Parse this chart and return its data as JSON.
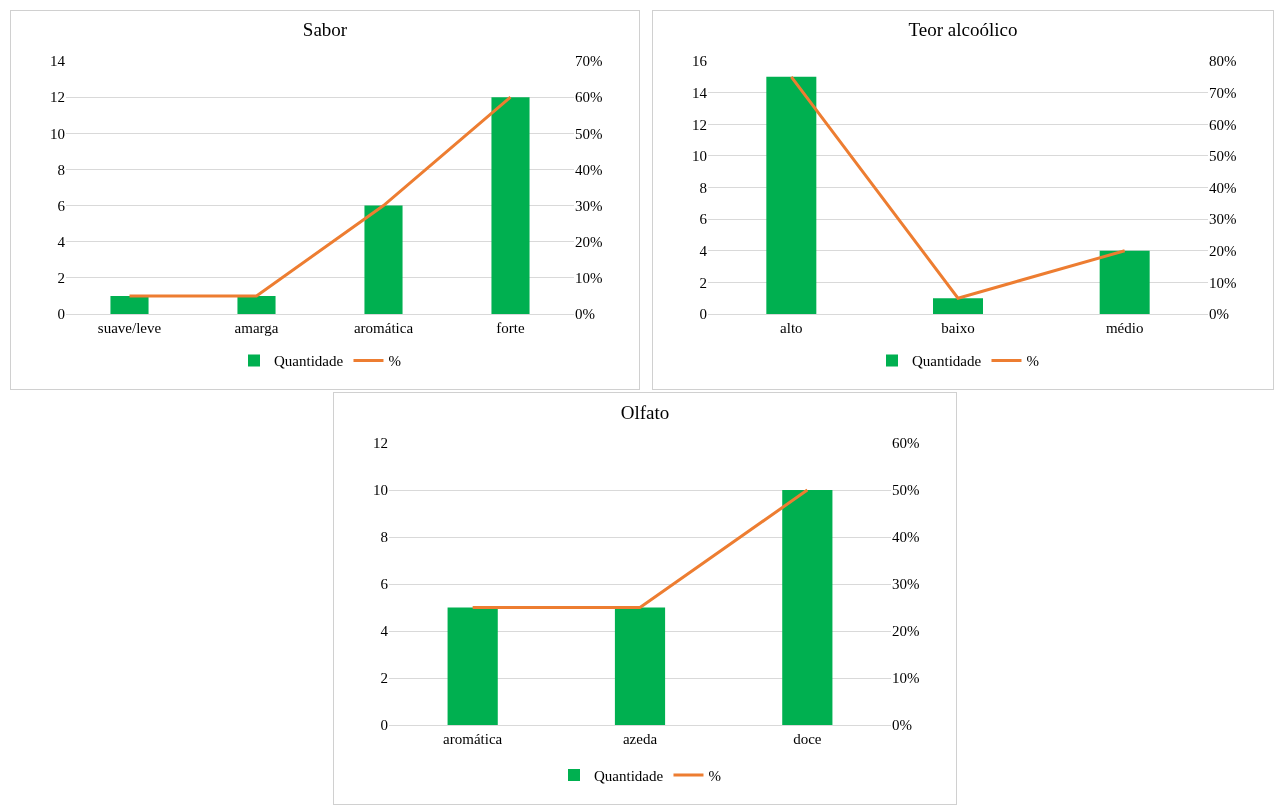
{
  "chart_data": [
    {
      "type": "bar",
      "title": "Sabor",
      "categories": [
        "suave/leve",
        "amarga",
        "aromática",
        "forte"
      ],
      "series": [
        {
          "name": "Quantidade",
          "color": "#00b050",
          "values": [
            1,
            1,
            6,
            12
          ]
        },
        {
          "name": "%",
          "type": "line",
          "axis": "y2",
          "color": "#ed7d31",
          "values": [
            5,
            5,
            30,
            60
          ]
        }
      ],
      "ylim": [
        0,
        14
      ],
      "yticks": [
        0,
        2,
        4,
        6,
        8,
        10,
        12,
        14
      ],
      "y2lim": [
        0,
        70
      ],
      "y2ticks": [
        {
          "value": 0,
          "label": "0%"
        },
        {
          "value": 10,
          "label": "10%"
        },
        {
          "value": 20,
          "label": "20%"
        },
        {
          "value": 30,
          "label": "30%"
        },
        {
          "value": 40,
          "label": "40%"
        },
        {
          "value": 50,
          "label": "50%"
        },
        {
          "value": 60,
          "label": "60%"
        },
        {
          "value": 70,
          "label": "70%"
        }
      ],
      "grid": "y",
      "legend": "bottom",
      "marker": "none",
      "line_style": "solid"
    },
    {
      "type": "bar",
      "title": "Teor alcoólico",
      "categories": [
        "alto",
        "baixo",
        "médio"
      ],
      "series": [
        {
          "name": "Quantidade",
          "color": "#00b050",
          "values": [
            15,
            1,
            4
          ]
        },
        {
          "name": "%",
          "type": "line",
          "axis": "y2",
          "color": "#ed7d31",
          "values": [
            75,
            5,
            20
          ]
        }
      ],
      "ylim": [
        0,
        16
      ],
      "yticks": [
        0,
        2,
        4,
        6,
        8,
        10,
        12,
        14,
        16
      ],
      "y2lim": [
        0,
        80
      ],
      "y2ticks": [
        {
          "value": 0,
          "label": "0%"
        },
        {
          "value": 10,
          "label": "10%"
        },
        {
          "value": 20,
          "label": "20%"
        },
        {
          "value": 30,
          "label": "30%"
        },
        {
          "value": 40,
          "label": "40%"
        },
        {
          "value": 50,
          "label": "50%"
        },
        {
          "value": 60,
          "label": "60%"
        },
        {
          "value": 70,
          "label": "70%"
        },
        {
          "value": 80,
          "label": "80%"
        }
      ],
      "grid": "y",
      "legend": "bottom",
      "marker": "none",
      "line_style": "solid"
    },
    {
      "type": "bar",
      "title": "Olfato",
      "categories": [
        "aromática",
        "azeda",
        "doce"
      ],
      "series": [
        {
          "name": "Quantidade",
          "color": "#00b050",
          "values": [
            5,
            5,
            10
          ]
        },
        {
          "name": "%",
          "type": "line",
          "axis": "y2",
          "color": "#ed7d31",
          "values": [
            25,
            25,
            50
          ]
        }
      ],
      "ylim": [
        0,
        12
      ],
      "yticks": [
        0,
        2,
        4,
        6,
        8,
        10,
        12
      ],
      "y2lim": [
        0,
        60
      ],
      "y2ticks": [
        {
          "value": 0,
          "label": "0%"
        },
        {
          "value": 10,
          "label": "10%"
        },
        {
          "value": 20,
          "label": "20%"
        },
        {
          "value": 30,
          "label": "30%"
        },
        {
          "value": 40,
          "label": "40%"
        },
        {
          "value": 50,
          "label": "50%"
        },
        {
          "value": 60,
          "label": "60%"
        }
      ],
      "grid": "y",
      "legend": "bottom",
      "marker": "none",
      "line_style": "solid"
    }
  ]
}
